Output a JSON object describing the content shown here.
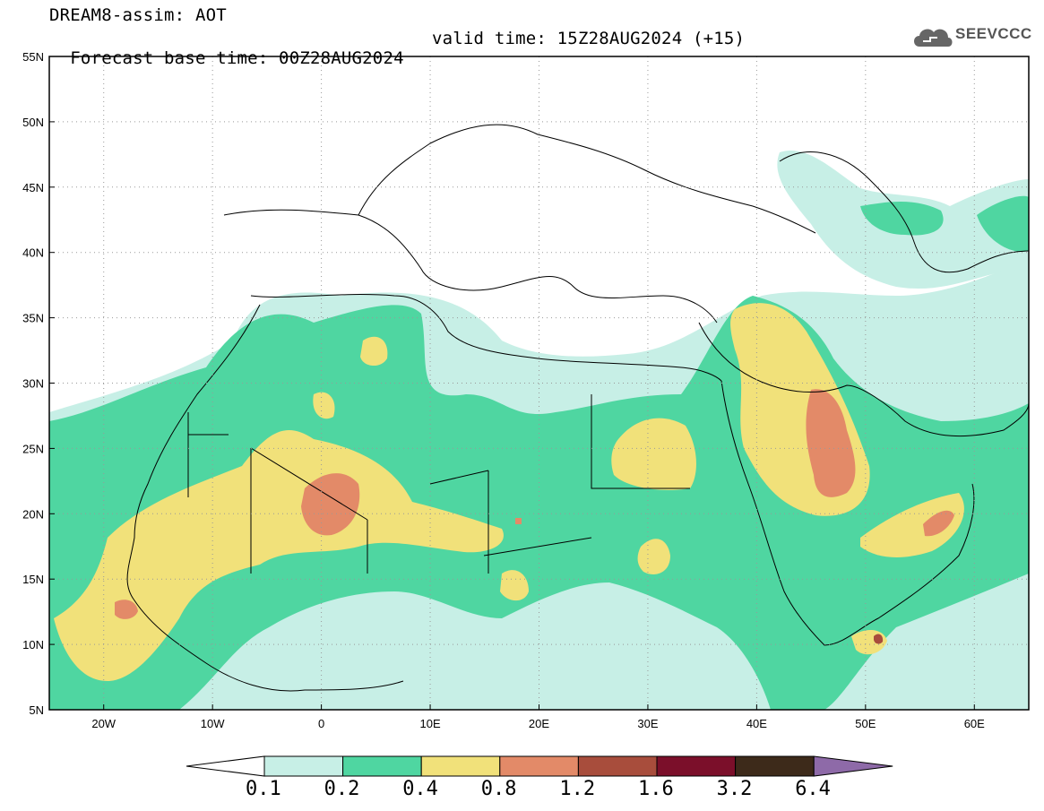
{
  "header": {
    "line1": "DREAM8-assim: AOT",
    "line2_base": "Forecast base time: 00Z28AUG2024",
    "line2_valid": "valid time: 15Z28AUG2024 (+15)"
  },
  "logo": {
    "text": "SEEVCCC",
    "icon": "cloud-icon"
  },
  "map": {
    "lon_range": [
      -25,
      65
    ],
    "lat_range": [
      5,
      55
    ],
    "lat_ticks": [
      {
        "value": 55,
        "label": "55N"
      },
      {
        "value": 50,
        "label": "50N"
      },
      {
        "value": 45,
        "label": "45N"
      },
      {
        "value": 40,
        "label": "40N"
      },
      {
        "value": 35,
        "label": "35N"
      },
      {
        "value": 30,
        "label": "30N"
      },
      {
        "value": 25,
        "label": "25N"
      },
      {
        "value": 20,
        "label": "20N"
      },
      {
        "value": 15,
        "label": "15N"
      },
      {
        "value": 10,
        "label": "10N"
      },
      {
        "value": 5,
        "label": "5N"
      }
    ],
    "lon_ticks": [
      {
        "value": -20,
        "label": "20W"
      },
      {
        "value": -10,
        "label": "10W"
      },
      {
        "value": 0,
        "label": "0"
      },
      {
        "value": 10,
        "label": "10E"
      },
      {
        "value": 20,
        "label": "20E"
      },
      {
        "value": 30,
        "label": "30E"
      },
      {
        "value": 40,
        "label": "40E"
      },
      {
        "value": 50,
        "label": "50E"
      },
      {
        "value": 60,
        "label": "60E"
      }
    ],
    "gridlines": "dotted"
  },
  "colorbar": {
    "levels": [
      "0.1",
      "0.2",
      "0.4",
      "0.8",
      "1.2",
      "1.6",
      "3.2",
      "6.4"
    ],
    "colors": [
      "#ffffff",
      "#c7efe6",
      "#4fd6a1",
      "#f1e17a",
      "#e38a68",
      "#a84d3c",
      "#7b0f2a",
      "#3d2a1a",
      "#8e6aa8"
    ]
  }
}
